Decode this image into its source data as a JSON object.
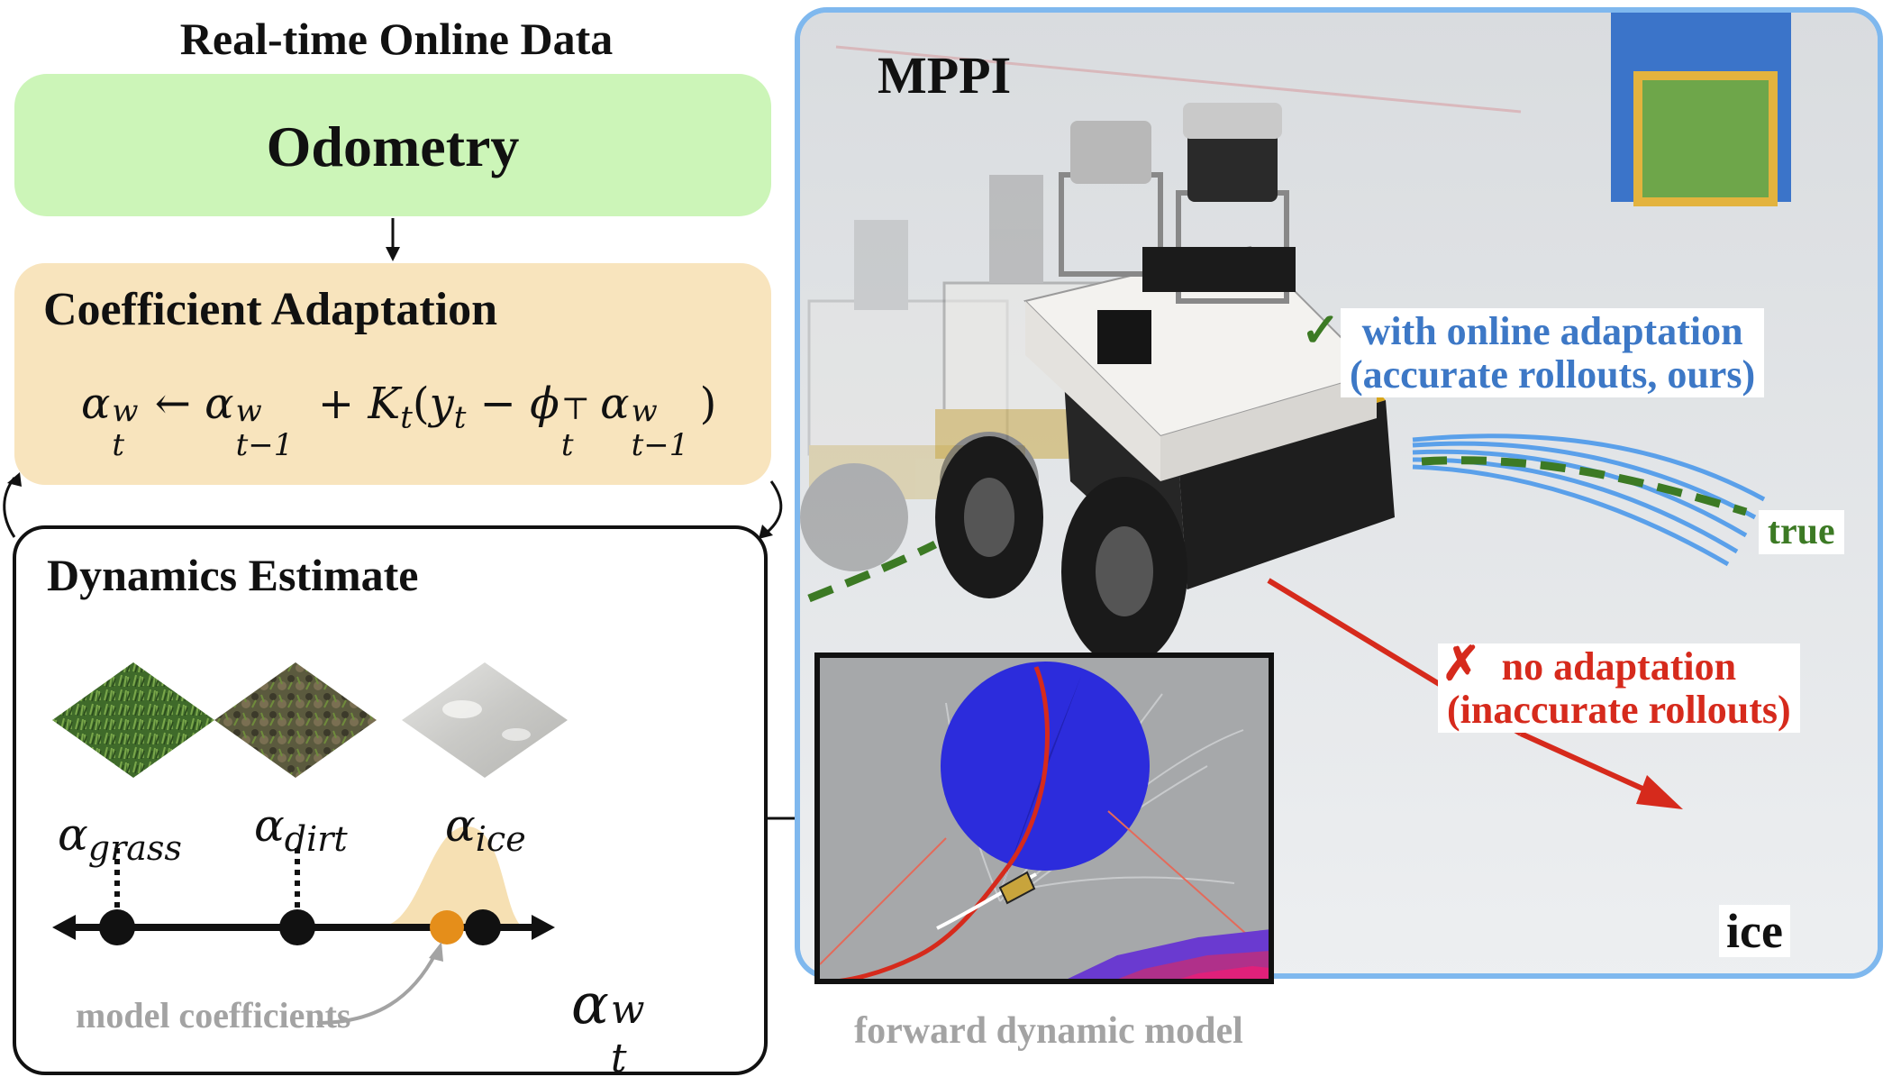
{
  "left_title": "Real-time Online Data",
  "odometry_label": "Odometry",
  "coefficient_adaptation": {
    "title": "Coefficient Adaptation",
    "equation": "α_t^w ← α_{t−1}^w + K_t(y_t − φ_t^⊤ α_{t−1}^w)"
  },
  "dynamics_estimate": {
    "title": "Dynamics Estimate",
    "terrains": [
      {
        "name": "grass",
        "label": "αgrass"
      },
      {
        "name": "dirt",
        "label": "αdirt"
      },
      {
        "name": "ice",
        "label": "αice"
      }
    ],
    "model_coefficients_label": "model coefficients",
    "current_coefficient_label": "αtw"
  },
  "mppi": {
    "title": "MPPI",
    "with_adaptation": "with online adaptation\n(accurate rollouts, ours)",
    "no_adaptation": "no adaptation\n(inaccurate rollouts)",
    "true_label": "true",
    "surface_label": "ice",
    "check_mark": "✓",
    "cross_mark": "✗"
  },
  "forward_model_label": "forward dynamic model",
  "colors": {
    "odometry_fill": "#ccf5b8",
    "adaptation_fill": "#f8e4bd",
    "panel_border": "#7fb8ee",
    "accurate_blue": "#3d78c6",
    "inaccurate_red": "#d62a1c",
    "true_green": "#3c7a24",
    "coefficient_orange": "#e58e1a"
  }
}
